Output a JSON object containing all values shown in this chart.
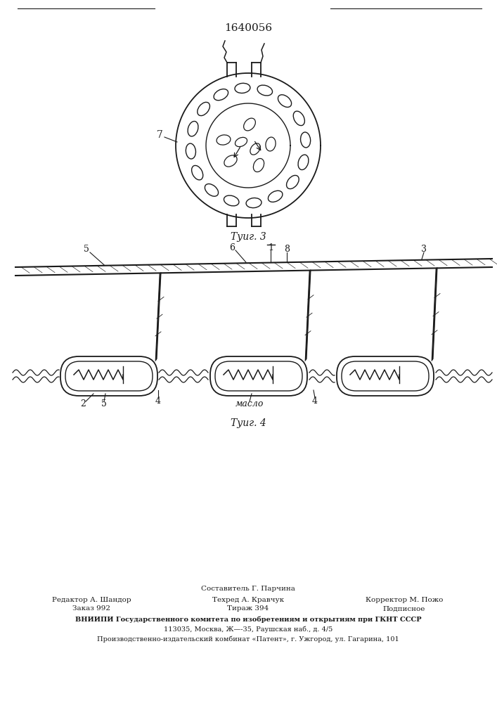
{
  "title": "1640056",
  "bg": "#ffffff",
  "lc": "#1a1a1a",
  "fig3_caption": "Τуиг. 3",
  "fig4_caption": "Τуиг. 4",
  "label_7": "7",
  "label_1": "1",
  "label_2": "2",
  "label_3": "3",
  "label_4": "4",
  "label_5": "5",
  "label_6": "6",
  "label_8": "8",
  "maslo": "масло",
  "footer_sestavitel": "Составитель Г. Парчина",
  "footer_redaktor": "Редактор А. Шандор",
  "footer_zakaz": "Заказ 992",
  "footer_tehred": "Техред А. Кравчук",
  "footer_tirazh": "Тираж 394",
  "footer_korrektor": "Корректор М. Пожо",
  "footer_podpisnoe": "Подписное",
  "footer_vniip": "ВНИИПИ Государственного комитета по изобретениям и открытиям при ГКНТ СССР",
  "footer_addr": "113035, Москва, Ж—-35, Раушская наб., д. 4/5",
  "footer_prod": "Производственно-издательский комбинат «Патент», г. Ужгород, ул. Гагарина, 101"
}
